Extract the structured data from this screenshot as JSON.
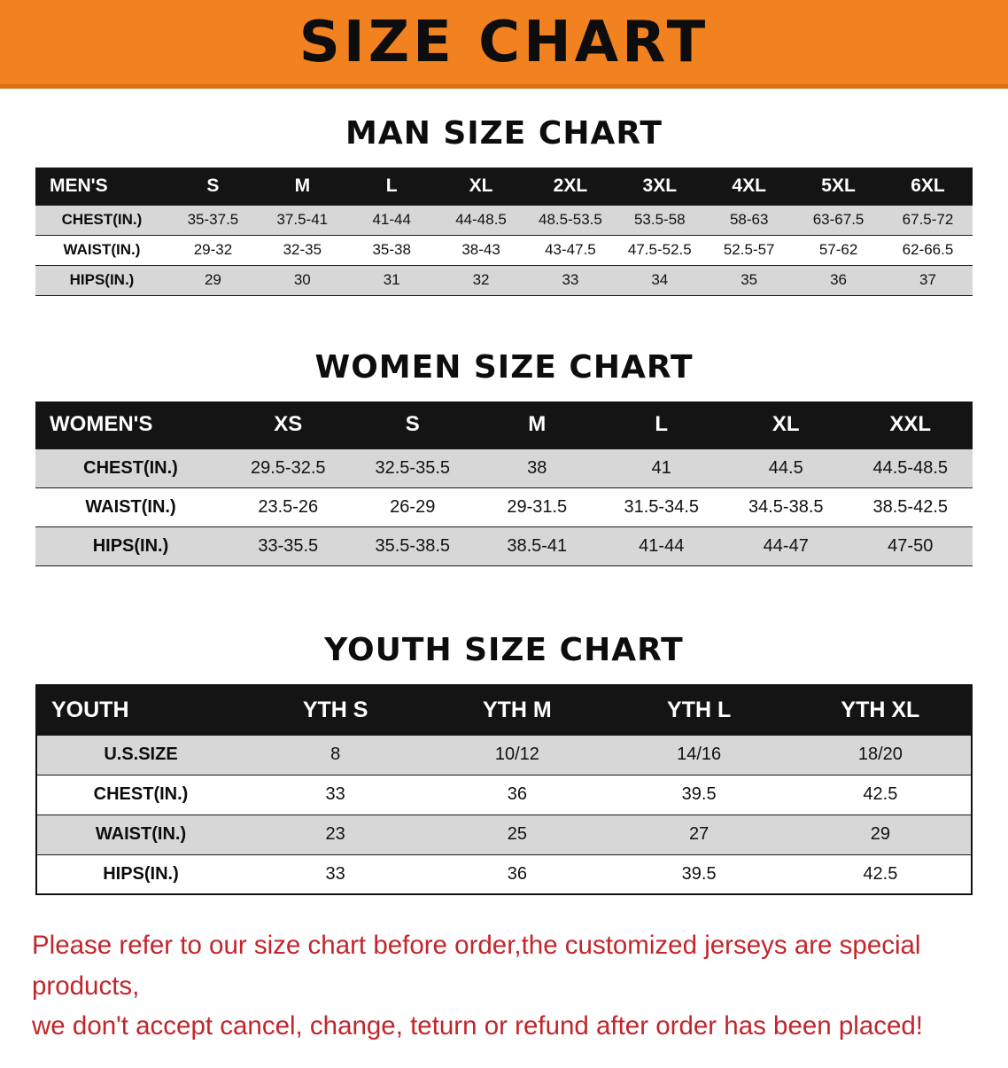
{
  "banner": {
    "title": "SIZE CHART"
  },
  "colors": {
    "banner_bg": "#f28120",
    "table_header_bg": "#141414",
    "row_shade_bg": "#d7d7d7",
    "notice_text": "#c2262b"
  },
  "men": {
    "heading": "MAN SIZE CHART",
    "header": [
      "MEN'S",
      "S",
      "M",
      "L",
      "XL",
      "2XL",
      "3XL",
      "4XL",
      "5XL",
      "6XL"
    ],
    "rows": [
      {
        "label": "CHEST(IN.)",
        "values": [
          "35-37.5",
          "37.5-41",
          "41-44",
          "44-48.5",
          "48.5-53.5",
          "53.5-58",
          "58-63",
          "63-67.5",
          "67.5-72"
        ]
      },
      {
        "label": "WAIST(IN.)",
        "values": [
          "29-32",
          "32-35",
          "35-38",
          "38-43",
          "43-47.5",
          "47.5-52.5",
          "52.5-57",
          "57-62",
          "62-66.5"
        ]
      },
      {
        "label": "HIPS(IN.)",
        "values": [
          "29",
          "30",
          "31",
          "32",
          "33",
          "34",
          "35",
          "36",
          "37"
        ]
      }
    ]
  },
  "women": {
    "heading": "WOMEN SIZE CHART",
    "header": [
      "WOMEN'S",
      "XS",
      "S",
      "M",
      "L",
      "XL",
      "XXL"
    ],
    "rows": [
      {
        "label": "CHEST(IN.)",
        "values": [
          "29.5-32.5",
          "32.5-35.5",
          "38",
          "41",
          "44.5",
          "44.5-48.5"
        ]
      },
      {
        "label": "WAIST(IN.)",
        "values": [
          "23.5-26",
          "26-29",
          "29-31.5",
          "31.5-34.5",
          "34.5-38.5",
          "38.5-42.5"
        ]
      },
      {
        "label": "HIPS(IN.)",
        "values": [
          "33-35.5",
          "35.5-38.5",
          "38.5-41",
          "41-44",
          "44-47",
          "47-50"
        ]
      }
    ]
  },
  "youth": {
    "heading": "YOUTH SIZE CHART",
    "header": [
      "YOUTH",
      "YTH S",
      "YTH M",
      "YTH L",
      "YTH XL"
    ],
    "rows": [
      {
        "label": "U.S.SIZE",
        "values": [
          "8",
          "10/12",
          "14/16",
          "18/20"
        ]
      },
      {
        "label": "CHEST(IN.)",
        "values": [
          "33",
          "36",
          "39.5",
          "42.5"
        ]
      },
      {
        "label": "WAIST(IN.)",
        "values": [
          "23",
          "25",
          "27",
          "29"
        ]
      },
      {
        "label": "HIPS(IN.)",
        "values": [
          "33",
          "36",
          "39.5",
          "42.5"
        ]
      }
    ]
  },
  "notice": {
    "line1": "Please refer to our size chart before order,the customized jerseys are special products,",
    "line2": "we don't accept cancel, change, teturn or refund after order has been placed!"
  }
}
